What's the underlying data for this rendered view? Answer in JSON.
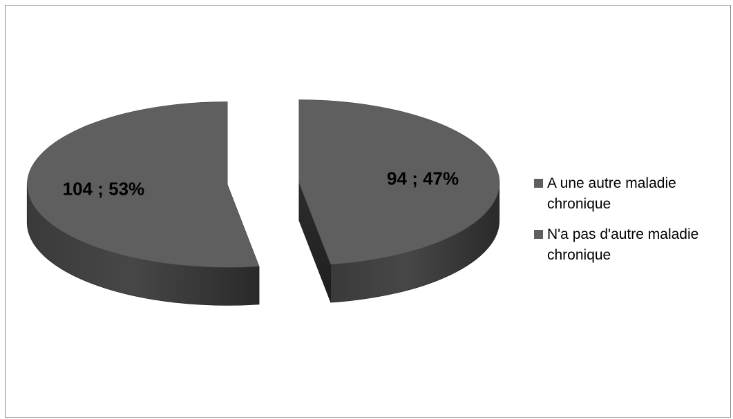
{
  "chart_data": {
    "type": "pie",
    "style": "3d-exploded",
    "slices": [
      {
        "name": "A une autre maladie chronique",
        "value": 94,
        "percent": 47,
        "label": "94 ; 47%",
        "color": "#5f5f5f"
      },
      {
        "name": "N'a pas d'autre maladie chronique",
        "value": 104,
        "percent": 53,
        "label": "104 ; 53%",
        "color": "#5f5f5f"
      }
    ],
    "legend_position": "right"
  }
}
